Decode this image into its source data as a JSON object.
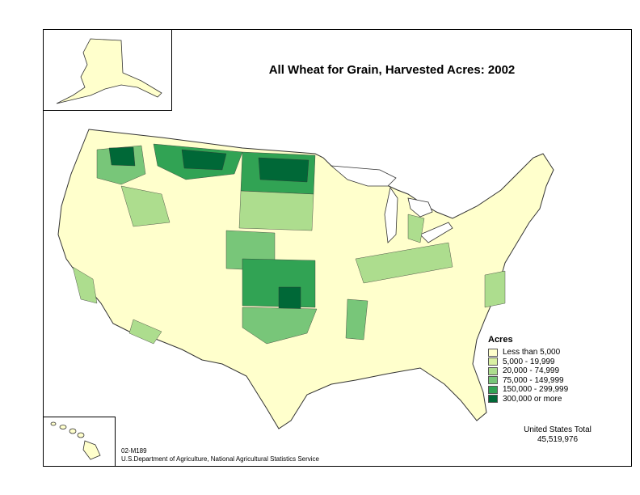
{
  "title": "All Wheat for Grain, Harvested Acres:  2002",
  "legend": {
    "title": "Acres",
    "items": [
      {
        "label": "Less than 5,000",
        "color": "#ffffcc"
      },
      {
        "label": "5,000 - 19,999",
        "color": "#d9f0a3"
      },
      {
        "label": "20,000 - 74,999",
        "color": "#addd8e"
      },
      {
        "label": "75,000 - 149,999",
        "color": "#78c679"
      },
      {
        "label": "150,000 - 299,999",
        "color": "#31a354"
      },
      {
        "label": "300,000 or more",
        "color": "#006837"
      }
    ]
  },
  "total": {
    "label": "United States Total",
    "value": "45,519,976"
  },
  "credits": {
    "map_id": "02-M189",
    "source": "U.S.Department of Agriculture, National Agricultural Statistics Service"
  }
}
